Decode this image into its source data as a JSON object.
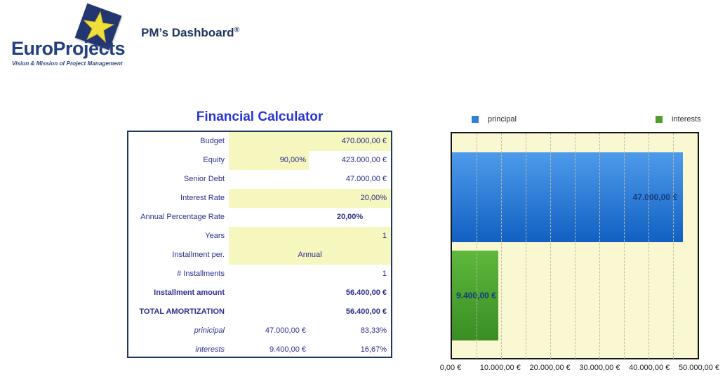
{
  "header": {
    "logo_name": "EuroProjects",
    "logo_tagline": "Vision & Mission of Project Management",
    "title": "PM’s Dashboard",
    "title_mark": "®"
  },
  "calculator": {
    "title": "Financial Calculator",
    "rows": [
      {
        "label": "Budget",
        "mid": "",
        "value": "470.000,00 €"
      },
      {
        "label": "Equity",
        "mid": "90,00%",
        "value": "423.000,00 €"
      },
      {
        "label": "Senior Debt",
        "mid": "",
        "value": "47.000,00 €"
      },
      {
        "label": "Interest Rate",
        "mid": "",
        "value": "20,00%"
      },
      {
        "label": "Annual Percentage Rate",
        "mid": "",
        "value": "20,00%"
      },
      {
        "label": "Years",
        "mid": "",
        "value": "1"
      },
      {
        "label": "Installment per.",
        "mid": "Annual",
        "value": ""
      },
      {
        "label": "# Installments",
        "mid": "",
        "value": "1"
      },
      {
        "label": "Installment amount",
        "mid": "",
        "value": "56.400,00 €"
      },
      {
        "label": "TOTAL AMORTIZATION",
        "mid": "",
        "value": "56.400,00 €"
      },
      {
        "label": "prinicipal",
        "mid": "47.000,00 €",
        "value": "83,33%"
      },
      {
        "label": "interests",
        "mid": "9.400,00 €",
        "value": "16,67%"
      }
    ]
  },
  "chart_data": {
    "type": "bar",
    "orientation": "horizontal",
    "categories": [
      "principal",
      "interests"
    ],
    "values": [
      47000,
      9400
    ],
    "value_labels": [
      "47.000,00 €",
      "9.400,00 €"
    ],
    "xlim": [
      0,
      50000
    ],
    "gridline_step": 5000,
    "grid": true,
    "x_tick_labels": [
      "0,00 €",
      "10.000,00 €",
      "20.000,00 €",
      "30.000,00 €",
      "40.000,00 €",
      "50.000,00 €"
    ],
    "legend": {
      "position": "top",
      "items": [
        {
          "label": "principal",
          "color": "#3180D8"
        },
        {
          "label": "interests",
          "color": "#4F9E2F"
        }
      ]
    },
    "bar_colors": {
      "principal_top": "#4E9BEB",
      "principal_bottom": "#1160C2",
      "interests_top": "#5FB83C",
      "interests_bottom": "#398D24"
    },
    "plot_bg": "#FAF8D2"
  },
  "colors": {
    "logo_navy": "#243672",
    "table_text": "#2B2E8C",
    "table_border": "#1F3864",
    "input_cell_yellow": "#F6F6BF",
    "calc_title_blue": "#2834D6",
    "bar_label_navy": "#15397B"
  }
}
